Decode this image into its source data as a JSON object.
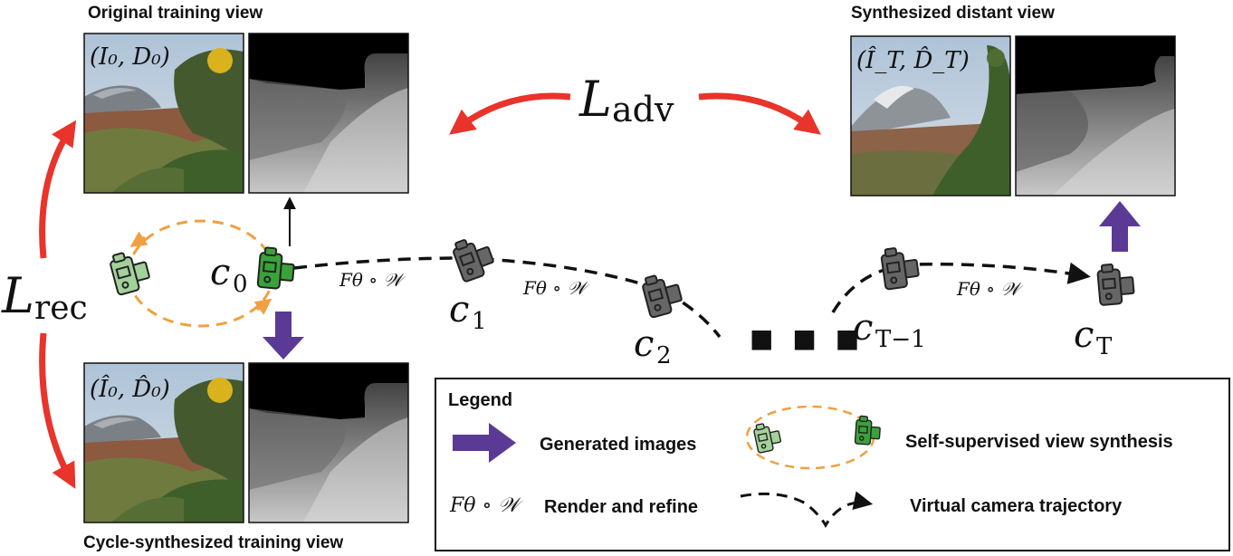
{
  "headers": {
    "original": "Original training view",
    "cycle": "Cycle-synthesized training view",
    "distant": "Synthesized distant view"
  },
  "losses": {
    "adv_symbol": "L",
    "adv_sub": "adv",
    "rec_symbol": "L",
    "rec_sub": "rec"
  },
  "image_labels": {
    "original": "(I₀, D₀)",
    "cycle": "(Î₀, D̂₀)",
    "distant": "(Î_T, D̂_T)"
  },
  "cameras": [
    {
      "id": "c0",
      "letter": "c",
      "sub": "0"
    },
    {
      "id": "c1",
      "letter": "c",
      "sub": "1"
    },
    {
      "id": "c2",
      "letter": "c",
      "sub": "2"
    },
    {
      "id": "cT-1",
      "letter": "c",
      "sub": "T−1"
    },
    {
      "id": "cT",
      "letter": "c",
      "sub": "T"
    }
  ],
  "operator": "Fθ ∘ 𝒲",
  "ellipsis": "■ ■ ■",
  "legend": {
    "title": "Legend",
    "generated": "Generated images",
    "self_supervised": "Self-supervised view synthesis",
    "render_refine": "Render and refine",
    "trajectory": "Virtual camera trajectory"
  },
  "colors": {
    "red": "#e8342b",
    "purple": "#5b3a96",
    "orange": "#f0a040",
    "green": "#3aa23a",
    "green_light": "#a3d19a",
    "gray": "#666666"
  }
}
